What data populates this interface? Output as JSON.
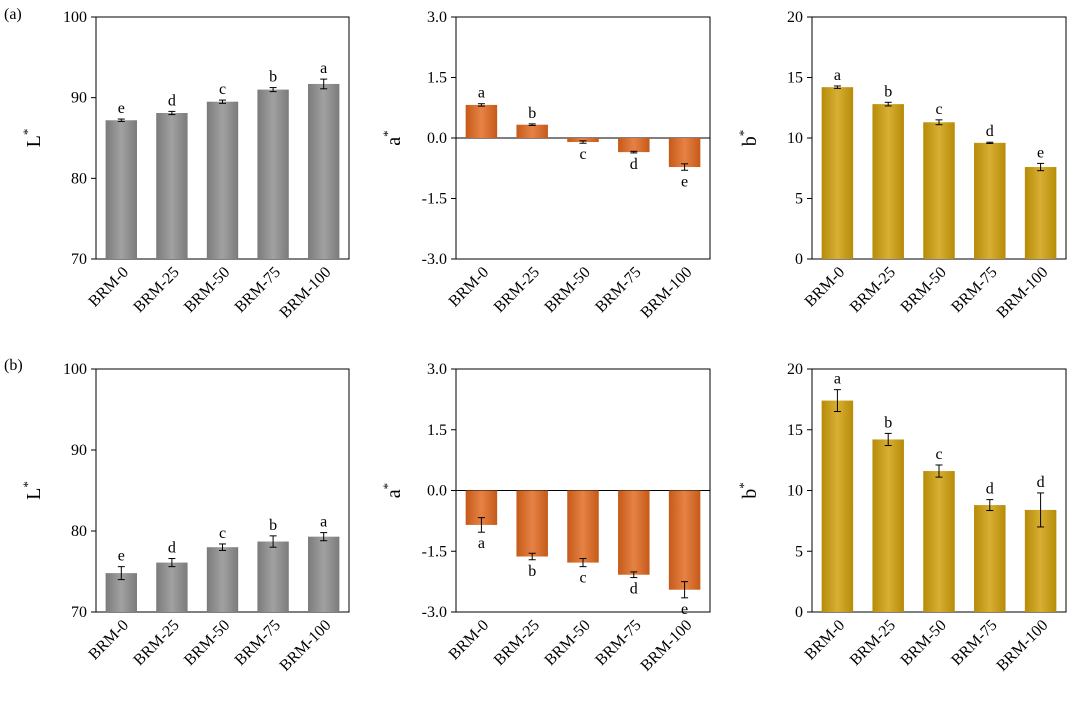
{
  "panel_labels": [
    "(a)",
    "(b)"
  ],
  "colors": {
    "gray": "#8c8c8c",
    "orange": "#e0661c",
    "gold": "#cf9e08"
  },
  "chart_data": [
    {
      "id": "a-L",
      "panel": "(a)",
      "type": "bar",
      "title": "",
      "ylabel": "L",
      "ylabel_sup": "*",
      "xlabel": "",
      "categories": [
        "BRM-0",
        "BRM-25",
        "BRM-50",
        "BRM-75",
        "BRM-100"
      ],
      "values": [
        87.2,
        88.1,
        89.5,
        91.0,
        91.7
      ],
      "errors": [
        0.15,
        0.2,
        0.2,
        0.25,
        0.6
      ],
      "letters": [
        "e",
        "d",
        "c",
        "b",
        "a"
      ],
      "ylim": [
        70,
        100
      ],
      "yticks": [
        70,
        80,
        90,
        100
      ],
      "ytick_labels": [
        "70",
        "80",
        "90",
        "100"
      ],
      "color": "gray",
      "grid": false
    },
    {
      "id": "a-a",
      "panel": "(a)",
      "type": "bar",
      "title": "",
      "ylabel": "a",
      "ylabel_sup": "*",
      "xlabel": "",
      "categories": [
        "BRM-0",
        "BRM-25",
        "BRM-50",
        "BRM-75",
        "BRM-100"
      ],
      "values": [
        0.82,
        0.33,
        -0.1,
        -0.35,
        -0.72
      ],
      "errors": [
        0.03,
        0.02,
        0.03,
        0.02,
        0.08
      ],
      "letters": [
        "a",
        "b",
        "c",
        "d",
        "e"
      ],
      "ylim": [
        -3.0,
        3.0
      ],
      "yticks": [
        -3.0,
        -1.5,
        0.0,
        1.5,
        3.0
      ],
      "ytick_labels": [
        "-3.0",
        "-1.5",
        "0.0",
        "1.5",
        "3.0"
      ],
      "color": "orange",
      "grid": false
    },
    {
      "id": "a-b",
      "panel": "(a)",
      "type": "bar",
      "title": "",
      "ylabel": "b",
      "ylabel_sup": "*",
      "xlabel": "",
      "categories": [
        "BRM-0",
        "BRM-25",
        "BRM-50",
        "BRM-75",
        "BRM-100"
      ],
      "values": [
        14.2,
        12.8,
        11.3,
        9.6,
        7.6
      ],
      "errors": [
        0.1,
        0.15,
        0.2,
        0.05,
        0.3
      ],
      "letters": [
        "a",
        "b",
        "c",
        "d",
        "e"
      ],
      "ylim": [
        0,
        20
      ],
      "yticks": [
        0,
        5,
        10,
        15,
        20
      ],
      "ytick_labels": [
        "0",
        "5",
        "10",
        "15",
        "20"
      ],
      "color": "gold",
      "grid": false
    },
    {
      "id": "b-L",
      "panel": "(b)",
      "type": "bar",
      "title": "",
      "ylabel": "L",
      "ylabel_sup": "*",
      "xlabel": "",
      "categories": [
        "BRM-0",
        "BRM-25",
        "BRM-50",
        "BRM-75",
        "BRM-100"
      ],
      "values": [
        74.8,
        76.1,
        78.0,
        78.7,
        79.3
      ],
      "errors": [
        0.8,
        0.5,
        0.4,
        0.7,
        0.5
      ],
      "letters": [
        "e",
        "d",
        "c",
        "b",
        "a"
      ],
      "ylim": [
        70,
        100
      ],
      "yticks": [
        70,
        80,
        90,
        100
      ],
      "ytick_labels": [
        "70",
        "80",
        "90",
        "100"
      ],
      "color": "gray",
      "grid": false
    },
    {
      "id": "b-a",
      "panel": "(b)",
      "type": "bar",
      "title": "",
      "ylabel": "a",
      "ylabel_sup": "*",
      "xlabel": "",
      "categories": [
        "BRM-0",
        "BRM-25",
        "BRM-50",
        "BRM-75",
        "BRM-100"
      ],
      "values": [
        -0.85,
        -1.63,
        -1.78,
        -2.08,
        -2.45
      ],
      "errors": [
        0.18,
        0.08,
        0.1,
        0.07,
        0.2
      ],
      "letters": [
        "a",
        "b",
        "c",
        "d",
        "e"
      ],
      "ylim": [
        -3.0,
        3.0
      ],
      "yticks": [
        -3.0,
        -1.5,
        0.0,
        1.5,
        3.0
      ],
      "ytick_labels": [
        "-3.0",
        "-1.5",
        "0.0",
        "1.5",
        "3.0"
      ],
      "color": "orange",
      "grid": false
    },
    {
      "id": "b-b",
      "panel": "(b)",
      "type": "bar",
      "title": "",
      "ylabel": "b",
      "ylabel_sup": "*",
      "xlabel": "",
      "categories": [
        "BRM-0",
        "BRM-25",
        "BRM-50",
        "BRM-75",
        "BRM-100"
      ],
      "values": [
        17.4,
        14.2,
        11.6,
        8.8,
        8.4
      ],
      "errors": [
        0.9,
        0.5,
        0.5,
        0.45,
        1.4
      ],
      "letters": [
        "a",
        "b",
        "c",
        "d",
        "d"
      ],
      "ylim": [
        0,
        20
      ],
      "yticks": [
        0,
        5,
        10,
        15,
        20
      ],
      "ytick_labels": [
        "0",
        "5",
        "10",
        "15",
        "20"
      ],
      "color": "gold",
      "grid": false
    }
  ]
}
